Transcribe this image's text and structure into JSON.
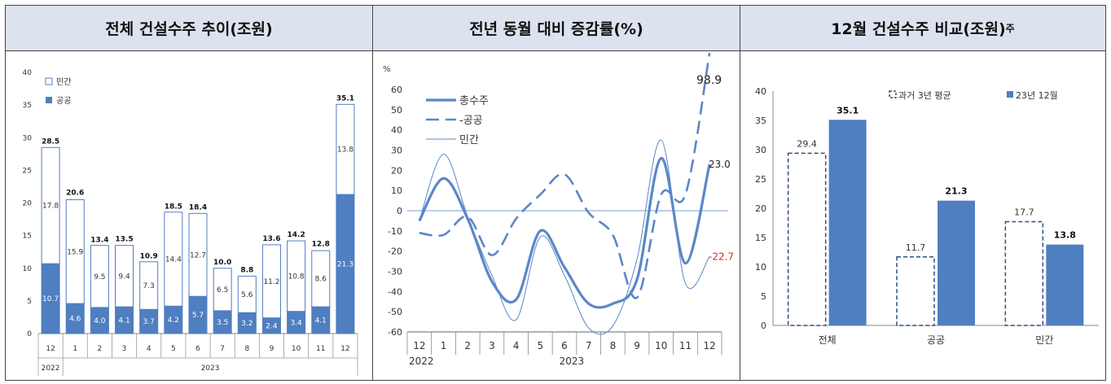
{
  "panels": {
    "p1": {
      "title": "전체 건설수주 추이(조원)"
    },
    "p2": {
      "title": "전년 동월 대비 증감률(%)"
    },
    "p3": {
      "title": "12월 건설수주 비교(조원)",
      "title_sup": "주"
    }
  },
  "chart_data": [
    {
      "type": "bar",
      "stacked": true,
      "categories": [
        "12",
        "1",
        "2",
        "3",
        "4",
        "5",
        "6",
        "7",
        "8",
        "9",
        "10",
        "11",
        "12"
      ],
      "year_labels": [
        "2022",
        "2023"
      ],
      "ylim": [
        0,
        40
      ],
      "yticks": [
        0,
        5,
        10,
        15,
        20,
        25,
        30,
        35,
        40
      ],
      "legend_position": "top-left",
      "series": [
        {
          "name": "민간",
          "values": [
            17.8,
            15.9,
            9.5,
            9.4,
            7.3,
            14.4,
            12.7,
            6.5,
            5.6,
            11.2,
            10.8,
            8.6,
            13.8
          ],
          "color": "#ffffff"
        },
        {
          "name": "공공",
          "values": [
            10.7,
            4.6,
            4.0,
            4.1,
            3.7,
            4.2,
            5.7,
            3.5,
            3.2,
            2.4,
            3.4,
            4.1,
            21.3
          ],
          "color": "#4f7ec1"
        }
      ],
      "totals": [
        28.5,
        20.6,
        13.4,
        13.5,
        10.9,
        18.5,
        18.4,
        10.0,
        8.8,
        13.6,
        14.2,
        12.8,
        35.1
      ]
    },
    {
      "type": "line",
      "categories": [
        "12",
        "1",
        "2",
        "3",
        "4",
        "5",
        "6",
        "7",
        "8",
        "9",
        "10",
        "11",
        "12"
      ],
      "year_labels": [
        "2022",
        "2023"
      ],
      "ylabel": "%",
      "ylim": [
        -60,
        60
      ],
      "yticks": [
        -60,
        -50,
        -40,
        -30,
        -20,
        -10,
        0,
        10,
        20,
        30,
        40,
        50,
        60
      ],
      "legend_position": "top-left",
      "series": [
        {
          "name": "총수주",
          "values": [
            -5,
            16,
            -4,
            -35,
            -44,
            -10,
            -28,
            -46,
            -46,
            -34,
            26,
            -26,
            23.0
          ],
          "color": "#5b87c7",
          "style": "solid-thick"
        },
        {
          "name": "공공",
          "values": [
            -11,
            -12,
            -3,
            -22,
            -4,
            8,
            18,
            -1,
            -12,
            -43,
            8,
            8,
            98.9
          ],
          "color": "#5b87c7",
          "style": "dashed"
        },
        {
          "name": "민간",
          "values": [
            -5,
            28,
            -3,
            -32,
            -54,
            -13,
            -32,
            -58,
            -57,
            -24,
            35,
            -36,
            -22.7
          ],
          "color": "#5b87c7",
          "style": "thin"
        }
      ],
      "end_labels": [
        {
          "text": "98.9",
          "color": "#222222"
        },
        {
          "text": "23.0",
          "color": "#222222"
        },
        {
          "text": "-22.7",
          "color": "#d03030"
        }
      ]
    },
    {
      "type": "bar",
      "categories": [
        "전체",
        "공공",
        "민간"
      ],
      "ylim": [
        0,
        40
      ],
      "yticks": [
        0,
        5,
        10,
        15,
        20,
        25,
        30,
        35,
        40
      ],
      "legend_position": "top",
      "series": [
        {
          "name": "과거 3년 평균",
          "values": [
            29.4,
            11.7,
            17.7
          ],
          "color": "#ffffff",
          "style": "dashed-outline"
        },
        {
          "name": "23년 12월",
          "values": [
            35.1,
            21.3,
            13.8
          ],
          "color": "#4f7ec1"
        }
      ]
    }
  ]
}
